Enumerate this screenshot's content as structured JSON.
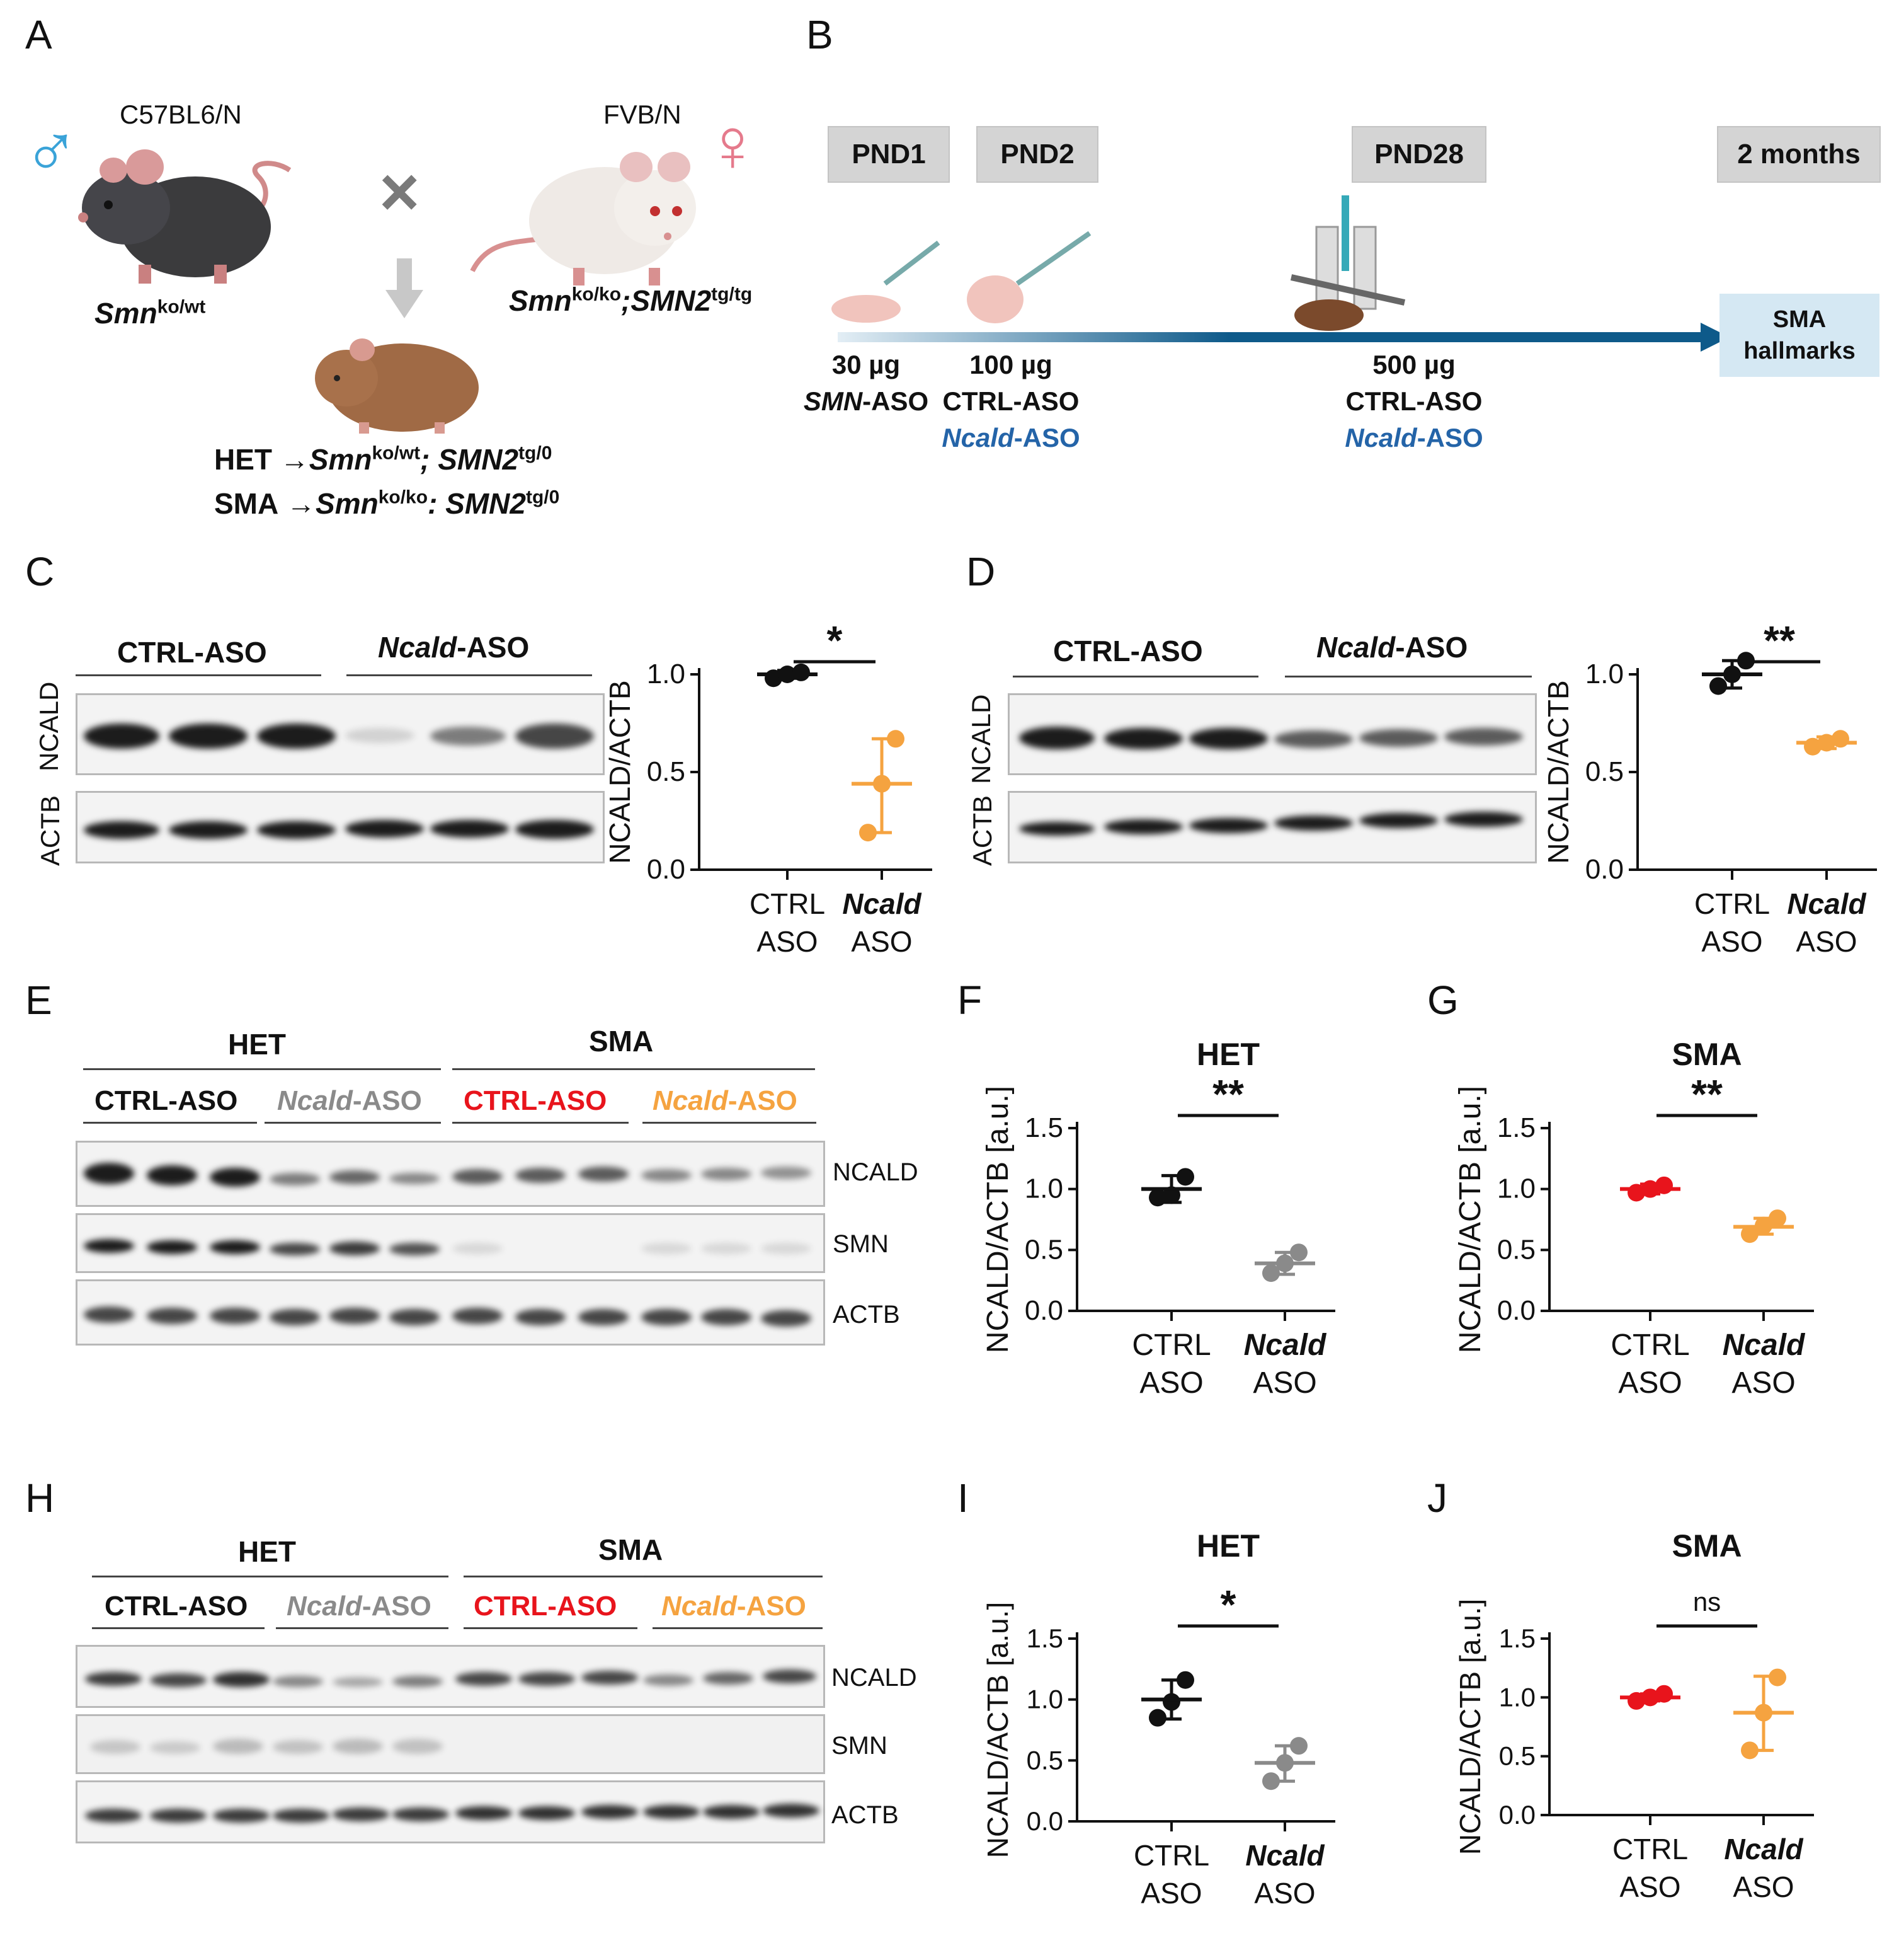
{
  "panels": {
    "a": "A",
    "b": "B",
    "c": "C",
    "d": "D",
    "e": "E",
    "f": "F",
    "g": "G",
    "h": "H",
    "i": "I",
    "j": "J"
  },
  "panelA": {
    "male_strain": "C57BL6/N",
    "male_symbol": "♂",
    "male_genotype_base": "Smn",
    "male_genotype_sup": "ko/wt",
    "female_strain": "FVB/N",
    "female_symbol": "♀",
    "female_genotype_base1": "Smn",
    "female_genotype_sup1": "ko/ko",
    "female_genotype_base2": ";SMN2",
    "female_genotype_sup2": "tg/tg",
    "cross": "×",
    "het_label": "HET",
    "het_arrow": "→",
    "het_g1": "Smn",
    "het_s1": "ko/wt",
    "het_g2": "; SMN2",
    "het_s2": "tg/0",
    "sma_label": "SMA",
    "sma_arrow": "→",
    "sma_g1": "Smn",
    "sma_s1": "ko/ko",
    "sma_g2": ": SMN2",
    "sma_s2": "tg/0"
  },
  "panelB": {
    "timepoints": [
      "PND1",
      "PND2",
      "PND28",
      "2 months"
    ],
    "d1_dose": "30 µg",
    "d1_aso_it": "SMN",
    "d1_aso_rest": "-ASO",
    "d2_dose": "100 µg",
    "d2_ctrl": "CTRL-ASO",
    "d2_ncald_it": "Ncald",
    "d2_ncald_rest": "-ASO",
    "d28_dose": "500 µg",
    "d28_ctrl": "CTRL-ASO",
    "d28_ncald_it": "Ncald",
    "d28_ncald_rest": "-ASO",
    "end_box_line1": "SMA",
    "end_box_line2": "hallmarks",
    "colors": {
      "timeline": "#0e5a8a",
      "ncald_blue": "#2464a8",
      "end_box": "#d5e8f3"
    }
  },
  "blotC": {
    "grp1": "CTRL-ASO",
    "grp2_it": "Ncald",
    "grp2_rest": "-ASO",
    "row1": "NCALD",
    "row2": "ACTB"
  },
  "blotD": {
    "grp1": "CTRL-ASO",
    "grp2_it": "Ncald",
    "grp2_rest": "-ASO",
    "row1": "NCALD",
    "row2": "ACTB"
  },
  "blotE": {
    "top1": "HET",
    "top2": "SMA",
    "g1": "CTRL-ASO",
    "g2_it": "Ncald",
    "g2_rest": "-ASO",
    "g3": "CTRL-ASO",
    "g4_it": "Ncald",
    "g4_rest": "-ASO",
    "rows": [
      "NCALD",
      "SMN",
      "ACTB"
    ]
  },
  "blotH": {
    "top1": "HET",
    "top2": "SMA",
    "g1": "CTRL-ASO",
    "g2_it": "Ncald",
    "g2_rest": "-ASO",
    "g3": "CTRL-ASO",
    "g4_it": "Ncald",
    "g4_rest": "-ASO",
    "rows": [
      "NCALD",
      "SMN",
      "ACTB"
    ]
  },
  "colors": {
    "black": "#111111",
    "gray": "#8a8a8a",
    "red": "#e8141c",
    "orange": "#f5a340"
  },
  "chart_data": [
    {
      "id": "C",
      "type": "scatter",
      "title": "",
      "ylabel": "NCALD/ACTB",
      "ylim": [
        0,
        1.0
      ],
      "yticks": [
        "0.0",
        "0.5",
        "1.0"
      ],
      "categories": [
        [
          "CTRL",
          "ASO"
        ],
        [
          "Ncald",
          "ASO"
        ]
      ],
      "sig": "*",
      "series": [
        {
          "points": [
            0.98,
            1.0,
            1.01
          ],
          "mean": 1.0,
          "sd_low": 0.98,
          "sd_high": 1.02,
          "color": "#111111"
        },
        {
          "points": [
            0.19,
            0.44,
            0.67
          ],
          "mean": 0.44,
          "sd_low": 0.19,
          "sd_high": 0.67,
          "color": "#f5a340"
        }
      ]
    },
    {
      "id": "D",
      "type": "scatter",
      "title": "",
      "ylabel": "NCALD/ACTB",
      "ylim": [
        0,
        1.0
      ],
      "yticks": [
        "0.0",
        "0.5",
        "1.0"
      ],
      "categories": [
        [
          "CTRL",
          "ASO"
        ],
        [
          "Ncald",
          "ASO"
        ]
      ],
      "sig": "**",
      "series": [
        {
          "points": [
            0.94,
            1.0,
            1.07
          ],
          "mean": 1.0,
          "sd_low": 0.93,
          "sd_high": 1.07,
          "color": "#111111"
        },
        {
          "points": [
            0.63,
            0.65,
            0.67
          ],
          "mean": 0.65,
          "sd_low": 0.62,
          "sd_high": 0.68,
          "color": "#f5a340"
        }
      ]
    },
    {
      "id": "F",
      "type": "scatter",
      "title": "HET",
      "ylabel": "NCALD/ACTB [a.u.]",
      "ylim": [
        0,
        1.5
      ],
      "yticks": [
        "0.0",
        "0.5",
        "1.0",
        "1.5"
      ],
      "categories": [
        [
          "CTRL",
          "ASO"
        ],
        [
          "Ncald",
          "ASO"
        ]
      ],
      "sig": "**",
      "series": [
        {
          "points": [
            0.93,
            0.95,
            1.1
          ],
          "mean": 1.0,
          "sd_low": 0.89,
          "sd_high": 1.11,
          "color": "#111111"
        },
        {
          "points": [
            0.31,
            0.39,
            0.48
          ],
          "mean": 0.39,
          "sd_low": 0.3,
          "sd_high": 0.48,
          "color": "#8a8a8a"
        }
      ]
    },
    {
      "id": "G",
      "type": "scatter",
      "title": "SMA",
      "ylabel": "NCALD/ACTB [a.u.]",
      "ylim": [
        0,
        1.5
      ],
      "yticks": [
        "0.0",
        "0.5",
        "1.0",
        "1.5"
      ],
      "categories": [
        [
          "CTRL",
          "ASO"
        ],
        [
          "Ncald",
          "ASO"
        ]
      ],
      "sig": "**",
      "series": [
        {
          "points": [
            0.97,
            1.0,
            1.03
          ],
          "mean": 1.0,
          "sd_low": 0.96,
          "sd_high": 1.04,
          "color": "#e8141c"
        },
        {
          "points": [
            0.63,
            0.7,
            0.76
          ],
          "mean": 0.69,
          "sd_low": 0.63,
          "sd_high": 0.76,
          "color": "#f5a340"
        }
      ]
    },
    {
      "id": "I",
      "type": "scatter",
      "title": "HET",
      "ylabel": "NCALD/ACTB [a.u.]",
      "ylim": [
        0,
        1.5
      ],
      "yticks": [
        "0.0",
        "0.5",
        "1.0",
        "1.5"
      ],
      "categories": [
        [
          "CTRL",
          "ASO"
        ],
        [
          "Ncald",
          "ASO"
        ]
      ],
      "sig": "*",
      "series": [
        {
          "points": [
            0.85,
            0.98,
            1.16
          ],
          "mean": 1.0,
          "sd_low": 0.84,
          "sd_high": 1.16,
          "color": "#111111"
        },
        {
          "points": [
            0.33,
            0.48,
            0.62
          ],
          "mean": 0.48,
          "sd_low": 0.33,
          "sd_high": 0.62,
          "color": "#8a8a8a"
        }
      ]
    },
    {
      "id": "J",
      "type": "scatter",
      "title": "SMA",
      "ylabel": "NCALD/ACTB [a.u.]",
      "ylim": [
        0,
        1.5
      ],
      "yticks": [
        "0.0",
        "0.5",
        "1.0",
        "1.5"
      ],
      "categories": [
        [
          "CTRL",
          "ASO"
        ],
        [
          "Ncald",
          "ASO"
        ]
      ],
      "sig": "ns",
      "series": [
        {
          "points": [
            0.97,
            1.0,
            1.03
          ],
          "mean": 1.0,
          "sd_low": 0.97,
          "sd_high": 1.03,
          "color": "#e8141c"
        },
        {
          "points": [
            0.55,
            0.87,
            1.17
          ],
          "mean": 0.87,
          "sd_low": 0.55,
          "sd_high": 1.18,
          "color": "#f5a340"
        }
      ]
    }
  ]
}
